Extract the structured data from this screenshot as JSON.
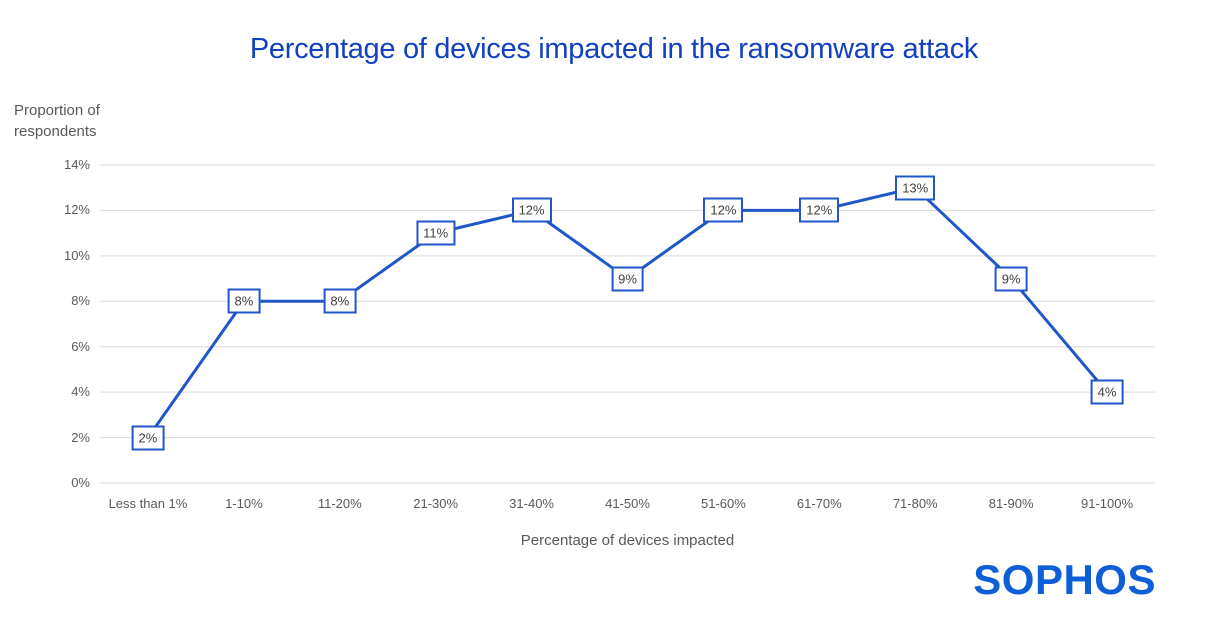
{
  "page": {
    "background": "#ffffff"
  },
  "chart_data": {
    "type": "line",
    "title": "Percentage of devices impacted in the ransomware attack",
    "xlabel": "Percentage of devices impacted",
    "ylabel": "Proportion of\nrespondents",
    "categories": [
      "Less than 1%",
      "1-10%",
      "11-20%",
      "21-30%",
      "31-40%",
      "41-50%",
      "51-60%",
      "61-70%",
      "71-80%",
      "81-90%",
      "91-100%"
    ],
    "values": [
      2,
      8,
      8,
      11,
      12,
      9,
      12,
      12,
      13,
      9,
      4
    ],
    "point_labels": [
      "2%",
      "8%",
      "8%",
      "11%",
      "12%",
      "9%",
      "12%",
      "12%",
      "13%",
      "9%",
      "4%"
    ],
    "ylim": [
      0,
      14
    ],
    "ytick_values": [
      0,
      2,
      4,
      6,
      8,
      10,
      12,
      14
    ],
    "ytick_labels": [
      "0%",
      "2%",
      "4%",
      "6%",
      "8%",
      "10%",
      "12%",
      "14%"
    ],
    "grid": true,
    "legend": "none",
    "colors": {
      "line": "#2056c8",
      "label_border": "#2056c8",
      "label_text": "#404040",
      "grid": "#d9d9d9",
      "axis_text": "#595959",
      "title": "#1140c0",
      "logo": "#0d5fd8"
    }
  },
  "branding": {
    "logo_text": "SOPHOS"
  }
}
